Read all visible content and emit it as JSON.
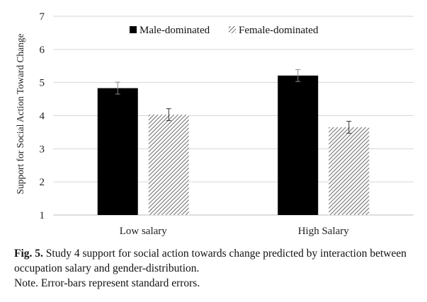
{
  "chart_data": {
    "type": "bar",
    "categories": [
      "Low salary",
      "High Salary"
    ],
    "series": [
      {
        "name": "Male-dominated",
        "values": [
          4.83,
          5.21
        ],
        "errors": [
          0.18,
          0.18
        ],
        "pattern": "solid",
        "color": "#000000"
      },
      {
        "name": "Female-dominated",
        "values": [
          4.03,
          3.65
        ],
        "errors": [
          0.18,
          0.18
        ],
        "pattern": "diagonal-hatch",
        "color": "#555555"
      }
    ],
    "ylabel": "Support for Social Action Toward Change",
    "xlabel": "",
    "ylim": [
      1,
      7
    ],
    "yticks": [
      1,
      2,
      3,
      4,
      5,
      6,
      7
    ],
    "grid": true,
    "legend_position": "top"
  },
  "caption": {
    "label": "Fig. 5.",
    "text": " Study 4 support for social action towards change predicted by interaction between occupation salary and gender-distribution.",
    "note": "Note. Error-bars represent standard errors."
  }
}
